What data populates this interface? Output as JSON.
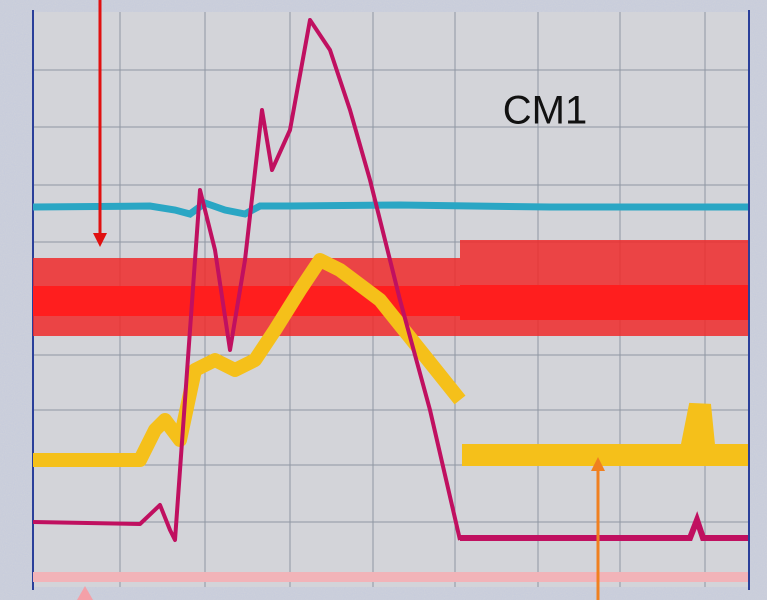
{
  "label": "CM1"
}
